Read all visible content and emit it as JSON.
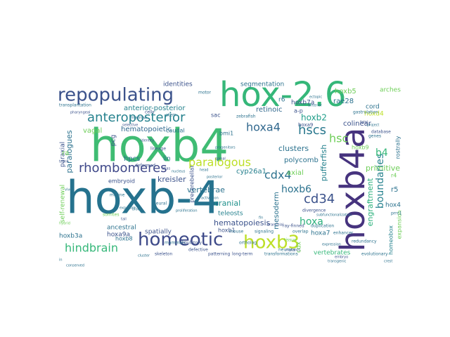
{
  "words": [
    {
      "text": "hoxb4",
      "color": "#3fbc73"
    },
    {
      "text": "hoxb-4",
      "color": "#25728e"
    },
    {
      "text": "hox-2.6",
      "color": "#35b779"
    },
    {
      "text": "hoxb4a",
      "color": "#46337e"
    },
    {
      "text": "repopulating",
      "color": "#3b528b"
    },
    {
      "text": "homeotic",
      "color": "#3e4a89"
    },
    {
      "text": "hoxb3",
      "color": "#bddf26"
    },
    {
      "text": "anteroposterior",
      "color": "#26828e"
    },
    {
      "text": "rhombomeres",
      "color": "#3f4889"
    },
    {
      "text": "hindbrain",
      "color": "#35b779"
    },
    {
      "text": "paralogous",
      "color": "#bddf26"
    },
    {
      "text": "hscs",
      "color": "#2a788e"
    },
    {
      "text": "hoxa4",
      "color": "#31688e"
    },
    {
      "text": "cdx4",
      "color": "#2c728e"
    },
    {
      "text": "cd34",
      "color": "#3b528b"
    },
    {
      "text": "hoxa",
      "color": "#2db27d"
    },
    {
      "text": "hoxb6",
      "color": "#2c728e"
    },
    {
      "text": "boundaries",
      "color": "#26828e"
    },
    {
      "text": "hsc",
      "color": "#6ece58"
    },
    {
      "text": "b4",
      "color": "#35b779"
    },
    {
      "text": "hoxb2",
      "color": "#1f9e89"
    },
    {
      "text": "pufferfish",
      "color": "#26828e"
    },
    {
      "text": "paralogues",
      "color": "#2c728e"
    },
    {
      "text": "hematopoiesis",
      "color": "#3b528b"
    },
    {
      "text": "cyp26a1",
      "color": "#27808e"
    },
    {
      "text": "engraftment",
      "color": "#2db27d"
    },
    {
      "text": "clusters",
      "color": "#2c728e"
    },
    {
      "text": "anterior-posterior",
      "color": "#26828e"
    },
    {
      "text": "hematopoietic",
      "color": "#31688e"
    },
    {
      "text": "kreisler",
      "color": "#3b528b"
    },
    {
      "text": "vertebrae",
      "color": "#2c728e"
    },
    {
      "text": "cranial",
      "color": "#21918c"
    },
    {
      "text": "teleosts",
      "color": "#26828e"
    },
    {
      "text": "mesoderm",
      "color": "#2c728e"
    },
    {
      "text": "primitive",
      "color": "#6ece58"
    },
    {
      "text": "polycomb",
      "color": "#2c728e"
    },
    {
      "text": "colinear",
      "color": "#3b528b"
    },
    {
      "text": "rae28",
      "color": "#2c728e"
    },
    {
      "text": "retinoic",
      "color": "#31688e"
    },
    {
      "text": "self-renewal",
      "color": "#6ece58"
    },
    {
      "text": "hoxb3a",
      "color": "#2c728e"
    },
    {
      "text": "hoxa9a",
      "color": "#3b528b"
    },
    {
      "text": "hoxb7a",
      "color": "#3b528b"
    },
    {
      "text": "hoxb5",
      "color": "#6ece58"
    },
    {
      "text": "hoxd4",
      "color": "#bddf26"
    },
    {
      "text": "identities",
      "color": "#3b528b"
    },
    {
      "text": "segmentation",
      "color": "#2c728e"
    },
    {
      "text": "arches",
      "color": "#6ece58"
    },
    {
      "text": "cord",
      "color": "#2c728e"
    },
    {
      "text": "ancestral",
      "color": "#2c728e"
    },
    {
      "text": "spatially",
      "color": "#3b528b"
    },
    {
      "text": "axial",
      "color": "#6ece58"
    },
    {
      "text": "hpcs",
      "color": "#2c728e"
    },
    {
      "text": "lin",
      "color": "#2c728e"
    },
    {
      "text": "pcg",
      "color": "#3b528b"
    },
    {
      "text": "vagal",
      "color": "#6ece58"
    },
    {
      "text": "paraxial",
      "color": "#3b528b"
    },
    {
      "text": "ra",
      "color": "#6ece58"
    },
    {
      "text": "r5",
      "color": "#2c728e"
    },
    {
      "text": "r6",
      "color": "#2c728e"
    },
    {
      "text": "r4",
      "color": "#6ece58"
    },
    {
      "text": "hoxa7",
      "color": "#2c728e"
    },
    {
      "text": "hoxb1",
      "color": "#3b528b"
    },
    {
      "text": "hoxb8",
      "color": "#2c728e"
    },
    {
      "text": "hox4",
      "color": "#2c728e"
    },
    {
      "text": "a-p",
      "color": "#3b528b"
    },
    {
      "text": "sac",
      "color": "#3b528b"
    },
    {
      "text": "bmi1",
      "color": "#2c728e"
    },
    {
      "text": "caudal",
      "color": "#2c728e"
    },
    {
      "text": "embryoid",
      "color": "#3b528b"
    },
    {
      "text": "precerebellar",
      "color": "#3b528b"
    },
    {
      "text": "vertebrates",
      "color": "#35b779"
    },
    {
      "text": "homeobox",
      "color": "#26828e"
    },
    {
      "text": "expansion",
      "color": "#6ece58"
    },
    {
      "text": "rostrally",
      "color": "#2c728e"
    },
    {
      "text": "hoxa9",
      "color": "#3b528b"
    },
    {
      "text": "cdx",
      "color": "#6ece58"
    },
    {
      "text": "transplantation",
      "color": "#2c728e"
    },
    {
      "text": "hoxb9",
      "color": "#6ece58"
    },
    {
      "text": "ray-finned",
      "color": "#3b528b"
    },
    {
      "text": "duplication",
      "color": "#2c728e"
    },
    {
      "text": "long-term",
      "color": "#3b528b"
    },
    {
      "text": "transformations",
      "color": "#2c728e"
    },
    {
      "text": "evolutionary",
      "color": "#2c728e"
    },
    {
      "text": "patterning",
      "color": "#3b528b"
    },
    {
      "text": "neural",
      "color": "#2c728e"
    },
    {
      "text": "zebrafish",
      "color": "#2c728e"
    },
    {
      "text": "gastrulation",
      "color": "#2c728e"
    },
    {
      "text": "prrc1",
      "color": "#2c728e"
    },
    {
      "text": "divergence",
      "color": "#3b528b"
    },
    {
      "text": "subfunctionalization",
      "color": "#2c728e"
    },
    {
      "text": "motor",
      "color": "#2c728e"
    },
    {
      "text": "genes",
      "color": "#2c728e"
    },
    {
      "text": "stem",
      "color": "#2c728e"
    },
    {
      "text": "cells",
      "color": "#3b528b"
    },
    {
      "text": "marrow",
      "color": "#2c728e"
    },
    {
      "text": "database",
      "color": "#3b528b"
    },
    {
      "text": "redundancy",
      "color": "#2c728e"
    },
    {
      "text": "defective",
      "color": "#3b528b"
    },
    {
      "text": "neurons",
      "color": "#2c728e"
    },
    {
      "text": "mammals",
      "color": "#2c728e"
    },
    {
      "text": "somites",
      "color": "#6ece58"
    },
    {
      "text": "enhancer",
      "color": "#2c728e"
    },
    {
      "text": "deformed",
      "color": "#3b528b"
    },
    {
      "text": "murine",
      "color": "#2c728e"
    },
    {
      "text": "lineage",
      "color": "#3b528b"
    },
    {
      "text": "overlap",
      "color": "#2c728e"
    },
    {
      "text": "signaling",
      "color": "#2c728e"
    },
    {
      "text": "tissue",
      "color": "#6ece58"
    },
    {
      "text": "regulatory",
      "color": "#3b528b"
    },
    {
      "text": "ortholog",
      "color": "#2c728e"
    },
    {
      "text": "mouse",
      "color": "#2c728e"
    },
    {
      "text": "skeleton",
      "color": "#3b528b"
    },
    {
      "text": "hybrid",
      "color": "#6ece58"
    },
    {
      "text": "in",
      "color": "#2c728e"
    },
    {
      "text": "vivo",
      "color": "#2c728e"
    },
    {
      "text": "atlas",
      "color": "#3b528b"
    },
    {
      "text": "posterior",
      "color": "#2c728e"
    },
    {
      "text": "nucleus",
      "color": "#2c728e"
    },
    {
      "text": "spinal",
      "color": "#3b528b"
    },
    {
      "text": "progenitors",
      "color": "#2c728e"
    },
    {
      "text": "anterior",
      "color": "#2c728e"
    },
    {
      "text": "fetal",
      "color": "#3b528b"
    },
    {
      "text": "blood",
      "color": "#2c728e"
    },
    {
      "text": "pharyngeal",
      "color": "#3b528b"
    },
    {
      "text": "conserved",
      "color": "#2c728e"
    },
    {
      "text": "selective",
      "color": "#3b528b"
    },
    {
      "text": "expression",
      "color": "#2c728e"
    },
    {
      "text": "cluster",
      "color": "#2c728e"
    },
    {
      "text": "identity",
      "color": "#3b528b"
    },
    {
      "text": "ectopic",
      "color": "#2c728e"
    },
    {
      "text": "proliferation",
      "color": "#2c728e"
    },
    {
      "text": "mutants",
      "color": "#3b528b"
    },
    {
      "text": "transgenic",
      "color": "#2c728e"
    },
    {
      "text": "embryo",
      "color": "#3b528b"
    },
    {
      "text": "exposure",
      "color": "#2c728e"
    },
    {
      "text": "head",
      "color": "#2c728e"
    },
    {
      "text": "trunk",
      "color": "#3b528b"
    },
    {
      "text": "crest",
      "color": "#2c728e"
    },
    {
      "text": "fin",
      "color": "#2c728e"
    },
    {
      "text": "branchial",
      "color": "#3b528b"
    },
    {
      "text": "activation",
      "color": "#2c728e"
    },
    {
      "text": "project",
      "color": "#2c728e"
    },
    {
      "text": "tail",
      "color": "#3b528b"
    }
  ]
}
